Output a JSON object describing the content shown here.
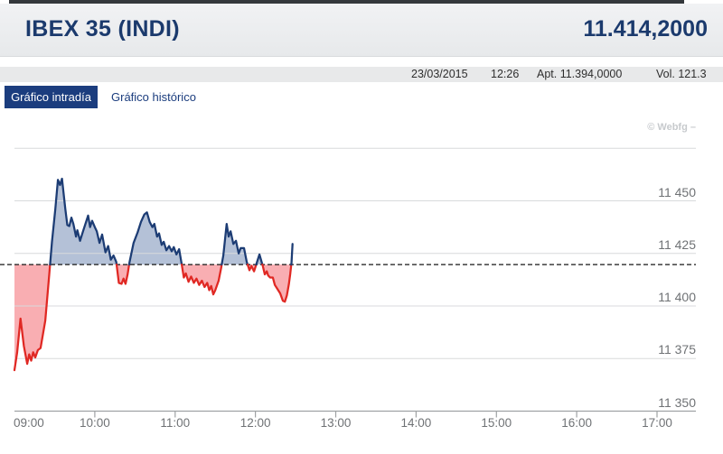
{
  "header": {
    "title": "IBEX 35 (INDI)",
    "last_price": "11.414,2000"
  },
  "info_bar": {
    "date": "23/03/2015",
    "time": "12:26",
    "open": "Apt. 11.394,0000",
    "volume": "Vol. 121.3"
  },
  "tabs": [
    {
      "label": "Gráfico intradía",
      "active": true
    },
    {
      "label": "Gráfico histórico",
      "active": false
    }
  ],
  "chart": {
    "watermark": "© Webfg –"
  },
  "colors": {
    "accent_navy": "#1b3a6d",
    "tab_bg": "#1b3d7e",
    "line_up": "#1c3c74",
    "fill_up": "#b4c1d7",
    "line_down": "#e02823",
    "fill_down": "#f9aeb2",
    "grid": "#d8dadc",
    "axis": "#9fa2a4",
    "baseline": "#161616",
    "label_gray": "#6f7275",
    "watermark_gray": "#c7cacd"
  },
  "chart_data": {
    "type": "area",
    "title": "IBEX 35 (INDI) intraday",
    "xlabel": "",
    "ylabel": "",
    "legend": "none",
    "grid": true,
    "x_axis": {
      "unit": "time of day",
      "tick_labels": [
        "09:00",
        "10:00",
        "11:00",
        "12:00",
        "13:00",
        "14:00",
        "15:00",
        "16:00",
        "17:00"
      ],
      "tick_minutes": [
        0,
        60,
        120,
        180,
        240,
        300,
        360,
        420,
        480
      ],
      "range_minutes": [
        0,
        509
      ]
    },
    "y_axis": {
      "tick_values": [
        11450,
        11425,
        11400,
        11375,
        11350
      ],
      "tick_labels": [
        "11 450",
        "11 425",
        "11 400",
        "11 375",
        "11 350"
      ],
      "range": [
        11350,
        11475
      ],
      "unlabeled_top_gridline": 11475
    },
    "baseline_value": 11419.7,
    "baseline_style": "dashed-black",
    "series": [
      {
        "name": "IBEX 35",
        "points_min_value": [
          [
            0,
            11369.5
          ],
          [
            2,
            11378
          ],
          [
            4.5,
            11394
          ],
          [
            7,
            11381
          ],
          [
            9.5,
            11372.5
          ],
          [
            11,
            11377
          ],
          [
            12.5,
            11374
          ],
          [
            14,
            11378
          ],
          [
            15.5,
            11375.5
          ],
          [
            17.5,
            11379
          ],
          [
            19.5,
            11380
          ],
          [
            23,
            11393
          ],
          [
            26,
            11415
          ],
          [
            28,
            11430.5
          ],
          [
            30.5,
            11446
          ],
          [
            32.5,
            11460
          ],
          [
            34,
            11457.5
          ],
          [
            35.5,
            11460.5
          ],
          [
            38,
            11446
          ],
          [
            39.5,
            11438.5
          ],
          [
            41,
            11438
          ],
          [
            42.5,
            11442
          ],
          [
            44,
            11439
          ],
          [
            46,
            11433
          ],
          [
            47,
            11436
          ],
          [
            49,
            11431
          ],
          [
            51,
            11435
          ],
          [
            53,
            11439
          ],
          [
            55,
            11443
          ],
          [
            56.5,
            11437.5
          ],
          [
            58,
            11440.5
          ],
          [
            60,
            11437.5
          ],
          [
            61.5,
            11435.5
          ],
          [
            63.5,
            11430
          ],
          [
            65.5,
            11434
          ],
          [
            68,
            11425.5
          ],
          [
            70,
            11428.5
          ],
          [
            72,
            11422
          ],
          [
            74,
            11424
          ],
          [
            76,
            11421
          ],
          [
            78,
            11411
          ],
          [
            80,
            11410.5
          ],
          [
            81.5,
            11413
          ],
          [
            83,
            11410.5
          ],
          [
            84.5,
            11415
          ],
          [
            86,
            11421
          ],
          [
            89,
            11430
          ],
          [
            92,
            11435
          ],
          [
            94.5,
            11440
          ],
          [
            97,
            11443.5
          ],
          [
            99,
            11444.5
          ],
          [
            101,
            11440
          ],
          [
            103,
            11437.5
          ],
          [
            104.5,
            11439
          ],
          [
            106.5,
            11433
          ],
          [
            108,
            11434.5
          ],
          [
            110,
            11429
          ],
          [
            111.5,
            11430.5
          ],
          [
            113.5,
            11426.5
          ],
          [
            115.5,
            11428.5
          ],
          [
            117.5,
            11426
          ],
          [
            119,
            11428
          ],
          [
            121,
            11424.5
          ],
          [
            123,
            11427
          ],
          [
            124.5,
            11421.5
          ],
          [
            126.5,
            11413.5
          ],
          [
            128,
            11415.5
          ],
          [
            130,
            11411.5
          ],
          [
            132,
            11414
          ],
          [
            134,
            11411
          ],
          [
            136,
            11413
          ],
          [
            138,
            11410
          ],
          [
            140,
            11412
          ],
          [
            142,
            11409
          ],
          [
            144,
            11411
          ],
          [
            145.5,
            11407.5
          ],
          [
            147,
            11409.5
          ],
          [
            148.5,
            11405.5
          ],
          [
            150,
            11407.5
          ],
          [
            152.5,
            11412
          ],
          [
            154.5,
            11418.5
          ],
          [
            156,
            11424
          ],
          [
            158.5,
            11439
          ],
          [
            160,
            11433
          ],
          [
            161.5,
            11435.5
          ],
          [
            163.5,
            11429.5
          ],
          [
            165.5,
            11431
          ],
          [
            167.5,
            11425
          ],
          [
            169,
            11427.5
          ],
          [
            171.5,
            11427.5
          ],
          [
            173.5,
            11421
          ],
          [
            175.5,
            11417
          ],
          [
            177,
            11419
          ],
          [
            179,
            11416.5
          ],
          [
            181,
            11420.5
          ],
          [
            183,
            11424.5
          ],
          [
            185.5,
            11419
          ],
          [
            187,
            11415
          ],
          [
            188.5,
            11416.5
          ],
          [
            189.5,
            11414.5
          ],
          [
            191,
            11413.5
          ],
          [
            193,
            11413.5
          ],
          [
            194.5,
            11410
          ],
          [
            196.5,
            11408
          ],
          [
            198.5,
            11406
          ],
          [
            200.5,
            11402.5
          ],
          [
            202,
            11402
          ],
          [
            203.5,
            11405
          ],
          [
            205,
            11410.5
          ],
          [
            206,
            11415
          ],
          [
            207,
            11421
          ],
          [
            207.7,
            11429.5
          ]
        ]
      }
    ]
  }
}
